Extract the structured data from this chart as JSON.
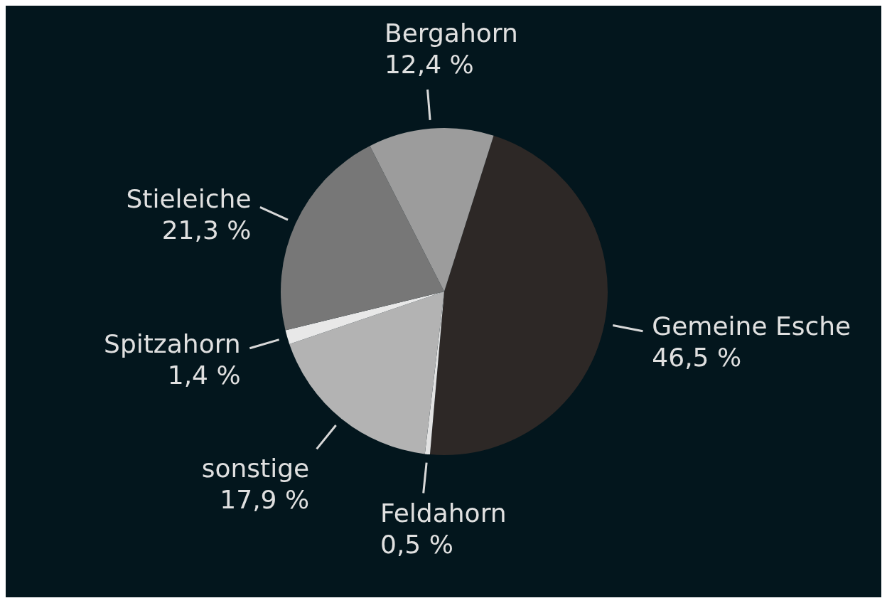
{
  "chart_data": {
    "type": "pie",
    "categories": [
      "Gemeine Esche",
      "Feldahorn",
      "sonstige",
      "Spitzahorn",
      "Stieleiche",
      "Bergahorn"
    ],
    "values": [
      46.5,
      0.5,
      17.9,
      1.4,
      21.3,
      12.4
    ],
    "value_labels": [
      "46,5 %",
      "0,5 %",
      "17,9 %",
      "1,4 %",
      "21,3 %",
      "12,4 %"
    ],
    "colors": [
      "#2d2826",
      "#e2e2e2",
      "#b3b3b3",
      "#e8e8e8",
      "#777777",
      "#9c9c9c"
    ],
    "legend": false
  }
}
